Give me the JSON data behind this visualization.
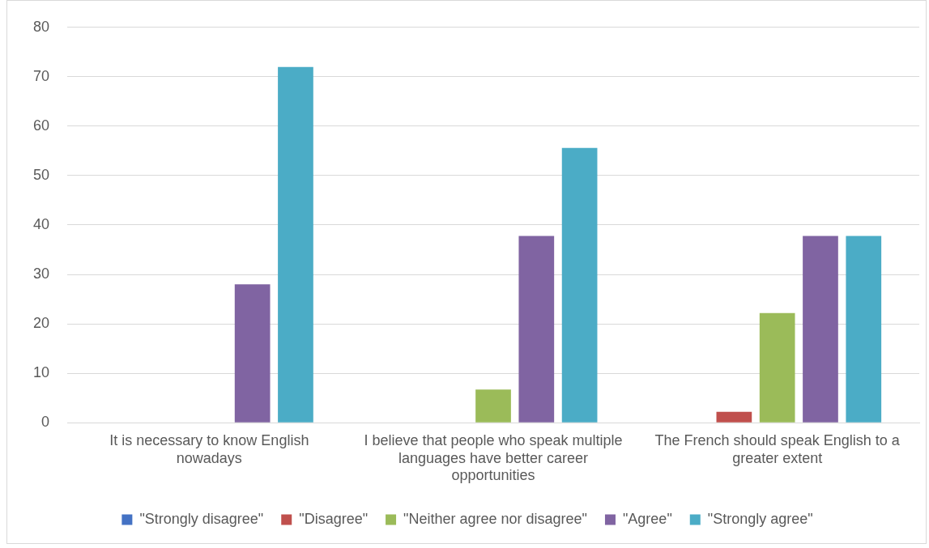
{
  "chart_data": {
    "type": "bar",
    "categories": [
      "It is necessary to know English nowadays",
      "I believe that people who speak multiple languages have better career opportunities",
      "The French should speak English to a greater extent"
    ],
    "series": [
      {
        "name": "\"Strongly disagree\"",
        "color": "#4472c4",
        "values": [
          0,
          0,
          0
        ]
      },
      {
        "name": "\"Disagree\"",
        "color": "#c0504d",
        "values": [
          0,
          0,
          2.2
        ]
      },
      {
        "name": "\"Neither agree nor disagree\"",
        "color": "#9bbb59",
        "values": [
          0,
          6.7,
          22.2
        ]
      },
      {
        "name": "\"Agree\"",
        "color": "#8064a2",
        "values": [
          28,
          37.8,
          37.8
        ]
      },
      {
        "name": "\"Strongly agree\"",
        "color": "#4bacc6",
        "values": [
          72,
          55.6,
          37.8
        ]
      }
    ],
    "ylim": [
      0,
      80
    ],
    "yticks": [
      0,
      10,
      20,
      30,
      40,
      50,
      60,
      70,
      80
    ],
    "grid": "y",
    "legend": "bottom"
  }
}
